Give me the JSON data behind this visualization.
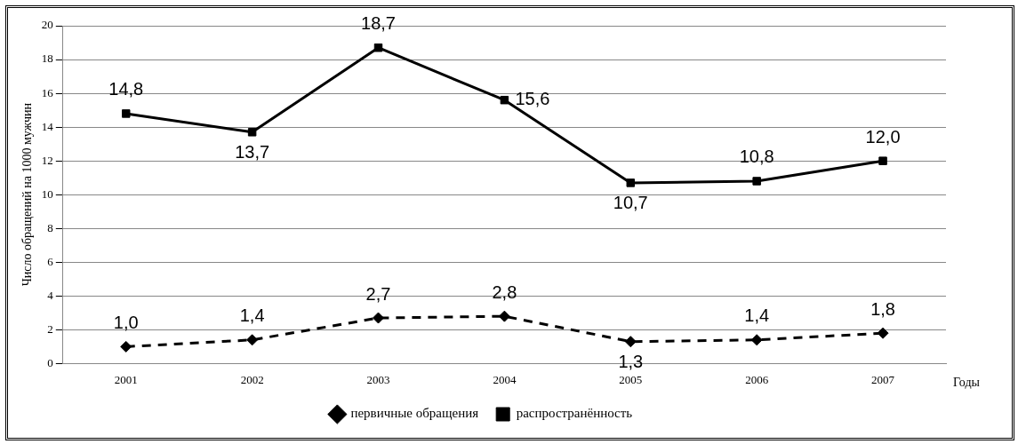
{
  "chart_data": {
    "type": "line",
    "xlabel": "Годы",
    "ylabel": "Число обращений на 1000 мужчин",
    "categories": [
      "2001",
      "2002",
      "2003",
      "2004",
      "2005",
      "2006",
      "2007"
    ],
    "series": [
      {
        "name": "первичные обращения",
        "color": "#000000",
        "values": [
          1.0,
          1.4,
          2.7,
          2.8,
          1.3,
          1.4,
          1.8
        ],
        "value_labels": [
          "1,0",
          "1,4",
          "2,7",
          "2,8",
          "1,3",
          "1,4",
          "1,8"
        ],
        "marker": "diamond",
        "line_style": "dashed"
      },
      {
        "name": "распространённость",
        "color": "#000000",
        "values": [
          14.8,
          13.7,
          18.7,
          15.6,
          10.7,
          10.8,
          12.0
        ],
        "value_labels": [
          "14,8",
          "13,7",
          "18,7",
          "15,6",
          "10,7",
          "10,8",
          "12,0"
        ],
        "marker": "square",
        "line_style": "solid"
      }
    ],
    "ylim": [
      0,
      20
    ],
    "yticks": [
      0,
      2,
      4,
      6,
      8,
      10,
      12,
      14,
      16,
      18,
      20
    ],
    "grid": "y",
    "legend": "bottom"
  }
}
